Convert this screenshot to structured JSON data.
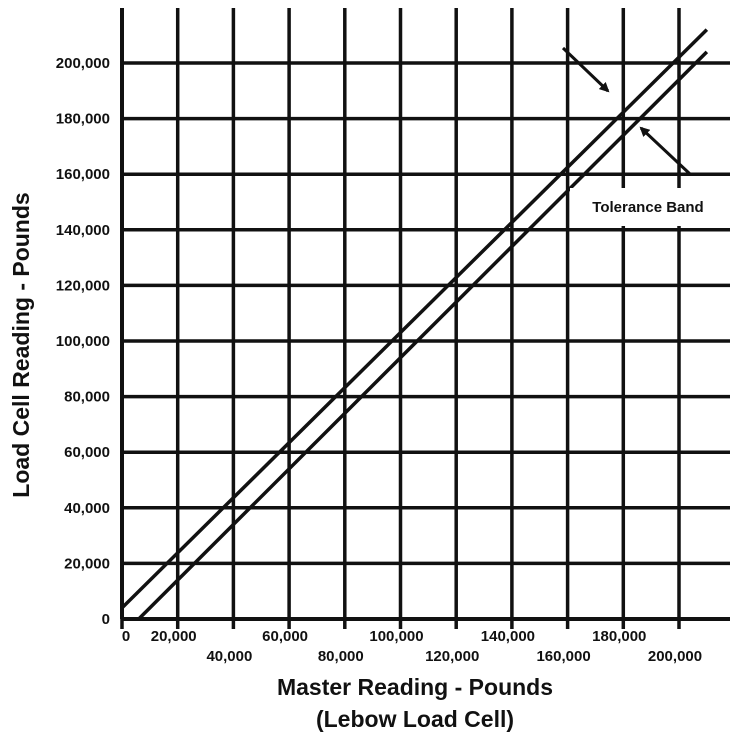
{
  "chart_data": {
    "type": "line",
    "title": "",
    "xlabel": "Master Reading - Pounds",
    "xlabel_sub": "(Lebow Load Cell)",
    "ylabel": "Load Cell Reading - Pounds",
    "x_ticks": [
      "0",
      "20,000",
      "40,000",
      "60,000",
      "80,000",
      "100,000",
      "120,000",
      "140,000",
      "160,000",
      "180,000",
      "200,000"
    ],
    "y_ticks": [
      "0",
      "20,000",
      "40,000",
      "60,000",
      "80,000",
      "100,000",
      "120,000",
      "140,000",
      "160,000",
      "180,000",
      "200,000"
    ],
    "xlim": [
      0,
      210000
    ],
    "ylim": [
      0,
      210000
    ],
    "grid": true,
    "series": [
      {
        "values": [
          [
            0,
            4000
          ],
          [
            210000,
            212000
          ]
        ]
      },
      {
        "values": [
          [
            6000,
            0
          ],
          [
            210000,
            204000
          ]
        ]
      }
    ],
    "annotations": [
      {
        "text": "Tolerance Band",
        "points_to": "band between the two lines near 180,000"
      }
    ],
    "colors": {
      "line": "#111111",
      "background": "#ffffff"
    }
  }
}
